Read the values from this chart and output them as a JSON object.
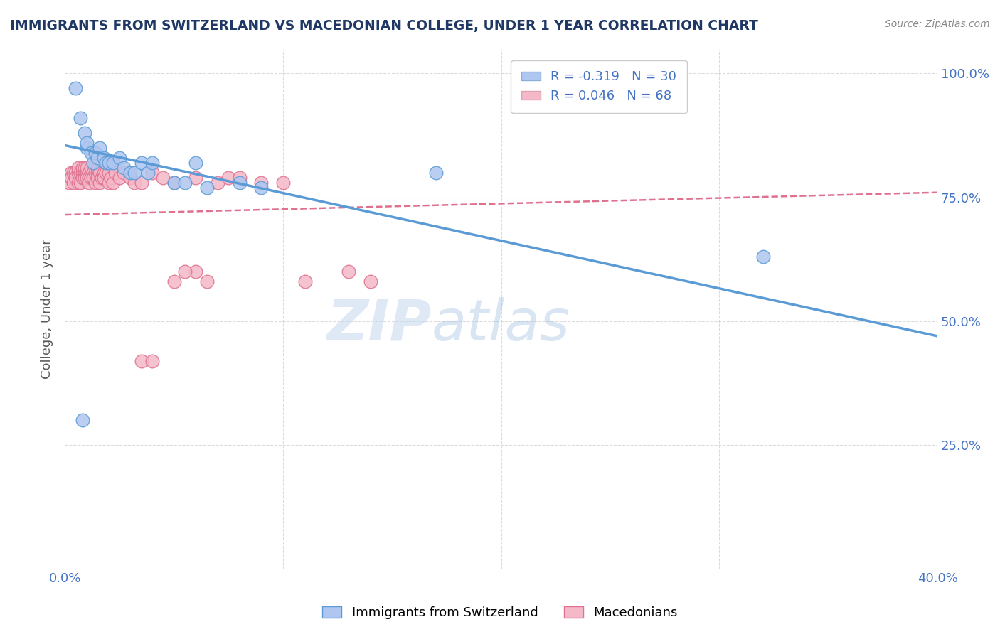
{
  "title": "IMMIGRANTS FROM SWITZERLAND VS MACEDONIAN COLLEGE, UNDER 1 YEAR CORRELATION CHART",
  "source": "Source: ZipAtlas.com",
  "ylabel": "College, Under 1 year",
  "xlim": [
    0.0,
    0.4
  ],
  "ylim": [
    0.0,
    1.05
  ],
  "xticks": [
    0.0,
    0.1,
    0.2,
    0.3,
    0.4
  ],
  "yticks": [
    0.0,
    0.25,
    0.5,
    0.75,
    1.0
  ],
  "grid_color": "#cccccc",
  "background_color": "#ffffff",
  "blue_scatter_x": [
    0.005,
    0.007,
    0.009,
    0.01,
    0.01,
    0.012,
    0.013,
    0.014,
    0.015,
    0.016,
    0.018,
    0.019,
    0.02,
    0.022,
    0.025,
    0.027,
    0.03,
    0.032,
    0.035,
    0.038,
    0.04,
    0.05,
    0.055,
    0.06,
    0.065,
    0.08,
    0.09,
    0.32,
    0.008,
    0.17
  ],
  "blue_scatter_y": [
    0.97,
    0.91,
    0.88,
    0.85,
    0.86,
    0.84,
    0.82,
    0.84,
    0.83,
    0.85,
    0.83,
    0.82,
    0.82,
    0.82,
    0.83,
    0.81,
    0.8,
    0.8,
    0.82,
    0.8,
    0.82,
    0.78,
    0.78,
    0.82,
    0.77,
    0.78,
    0.77,
    0.63,
    0.3,
    0.8
  ],
  "pink_scatter_x": [
    0.002,
    0.003,
    0.003,
    0.004,
    0.004,
    0.005,
    0.005,
    0.006,
    0.006,
    0.006,
    0.007,
    0.007,
    0.008,
    0.008,
    0.008,
    0.009,
    0.009,
    0.009,
    0.01,
    0.01,
    0.01,
    0.011,
    0.011,
    0.011,
    0.012,
    0.012,
    0.012,
    0.013,
    0.013,
    0.014,
    0.014,
    0.015,
    0.015,
    0.015,
    0.016,
    0.016,
    0.017,
    0.018,
    0.018,
    0.019,
    0.02,
    0.02,
    0.021,
    0.022,
    0.023,
    0.025,
    0.027,
    0.03,
    0.032,
    0.035,
    0.04,
    0.045,
    0.05,
    0.06,
    0.07,
    0.075,
    0.08,
    0.09,
    0.1,
    0.11,
    0.13,
    0.14,
    0.06,
    0.065,
    0.05,
    0.055,
    0.035,
    0.04
  ],
  "pink_scatter_y": [
    0.78,
    0.8,
    0.79,
    0.8,
    0.78,
    0.8,
    0.79,
    0.8,
    0.78,
    0.81,
    0.8,
    0.78,
    0.8,
    0.79,
    0.81,
    0.8,
    0.79,
    0.81,
    0.8,
    0.79,
    0.81,
    0.8,
    0.79,
    0.78,
    0.8,
    0.79,
    0.81,
    0.8,
    0.79,
    0.78,
    0.8,
    0.8,
    0.79,
    0.81,
    0.8,
    0.78,
    0.79,
    0.8,
    0.79,
    0.8,
    0.8,
    0.78,
    0.79,
    0.78,
    0.8,
    0.79,
    0.8,
    0.79,
    0.78,
    0.78,
    0.8,
    0.79,
    0.78,
    0.79,
    0.78,
    0.79,
    0.79,
    0.78,
    0.78,
    0.58,
    0.6,
    0.58,
    0.6,
    0.58,
    0.58,
    0.6,
    0.42,
    0.42
  ],
  "blue_line_x": [
    0.0,
    0.4
  ],
  "blue_line_y": [
    0.855,
    0.47
  ],
  "pink_line_x": [
    0.0,
    0.4
  ],
  "pink_line_y": [
    0.715,
    0.76
  ],
  "blue_color": "#5b9bd5",
  "pink_color": "#e07090",
  "blue_scatter_color": "#aec6f0",
  "pink_scatter_color": "#f4b8c8",
  "watermark_zip": "ZIP",
  "watermark_atlas": "atlas",
  "title_color": "#1f3864",
  "axis_label_color": "#595959",
  "tick_label_color": "#4472c4"
}
